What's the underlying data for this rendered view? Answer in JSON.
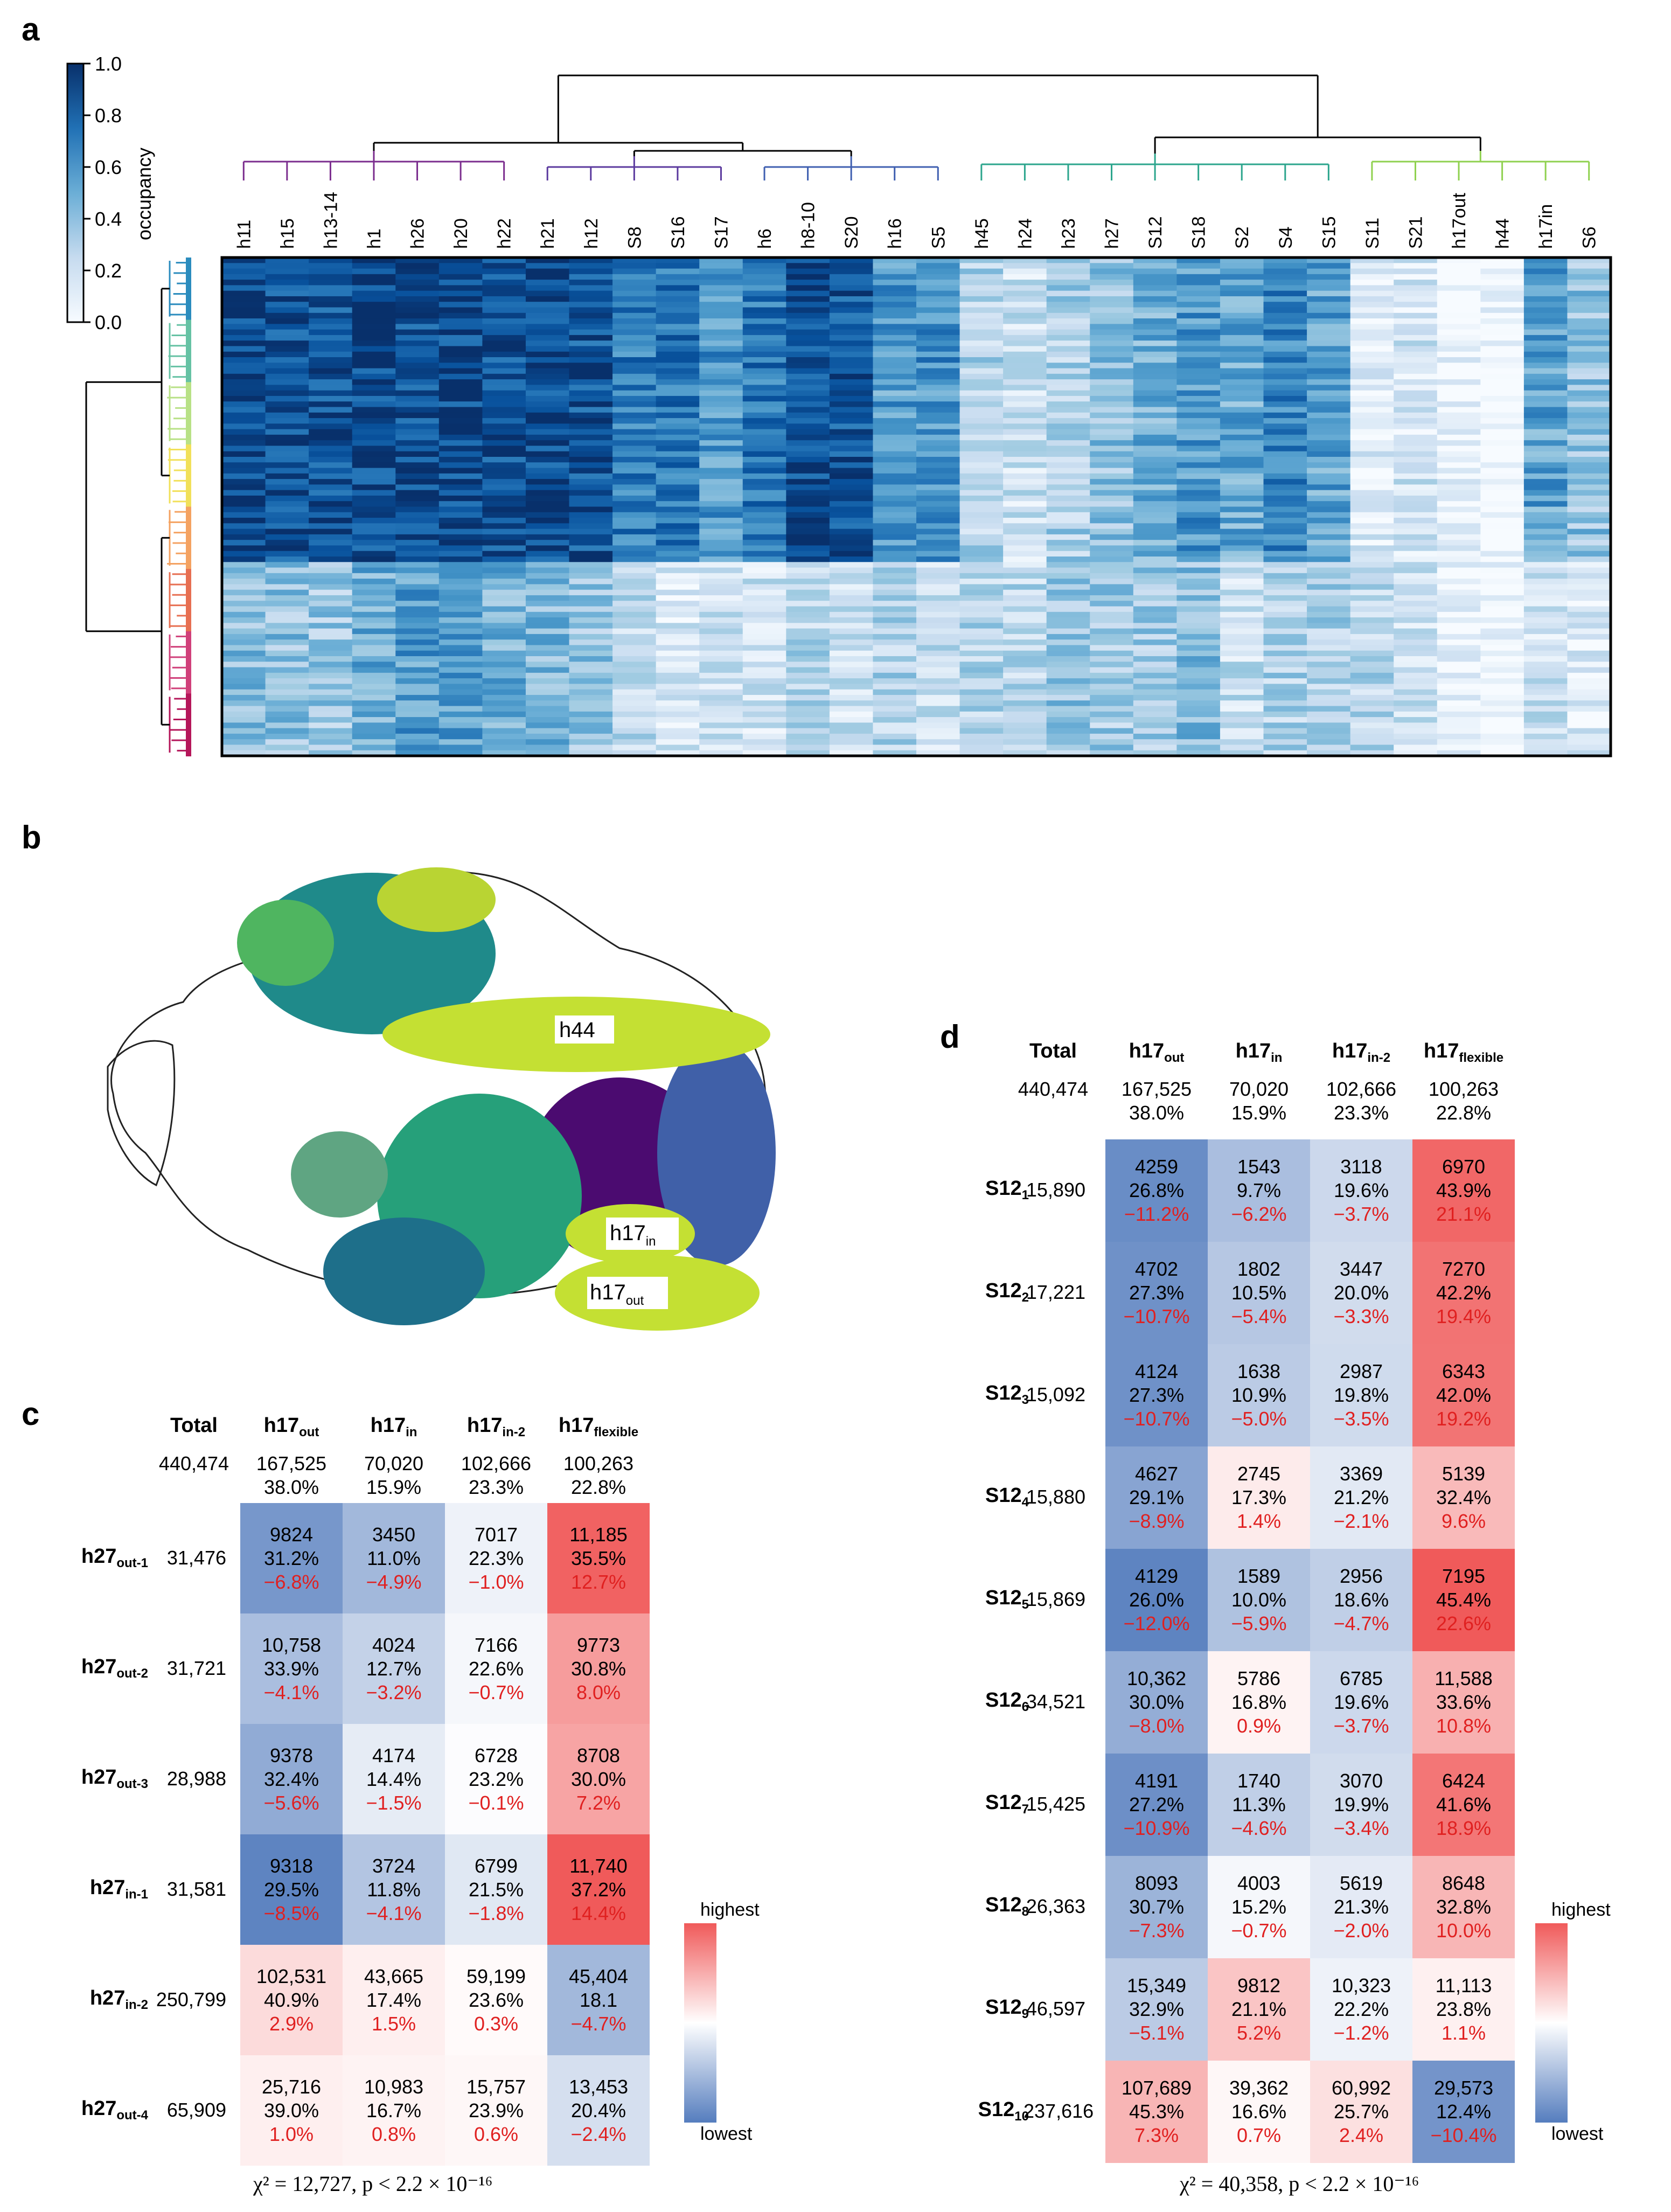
{
  "panels": {
    "a": "a",
    "b": "b",
    "c": "c",
    "d": "d"
  },
  "panel_a": {
    "colorbar": {
      "label": "occupancy",
      "ticks": [
        "1.0",
        "0.8",
        "0.6",
        "0.4",
        "0.2",
        "0.0"
      ],
      "cmap": [
        "#f7fbff",
        "#deebf7",
        "#c6dbef",
        "#9ecae1",
        "#6baed6",
        "#4292c6",
        "#2171b5",
        "#08519c",
        "#08306b"
      ]
    },
    "columns": [
      "h11",
      "h15",
      "h13-14",
      "h1",
      "h26",
      "h20",
      "h22",
      "h21",
      "h12",
      "S8",
      "S16",
      "S17",
      "h6",
      "h8-10",
      "S20",
      "h16",
      "S5",
      "h45",
      "h24",
      "h23",
      "h27",
      "S12",
      "S18",
      "S2",
      "S4",
      "S15",
      "S11",
      "S21",
      "h17out",
      "h44",
      "h17in",
      "S6"
    ],
    "column_cluster_colors": [
      "#7b2d8e",
      "#7b2d8e",
      "#7b2d8e",
      "#7b2d8e",
      "#7b2d8e",
      "#7b2d8e",
      "#7b2d8e",
      "#5b3a9e",
      "#5b3a9e",
      "#5b3a9e",
      "#5b3a9e",
      "#5b3a9e",
      "#3f5fb0",
      "#3f5fb0",
      "#3f5fb0",
      "#2e86a6",
      "#2e86a6",
      "#2ca58d",
      "#2ca58d",
      "#2ca58d",
      "#2fb67c",
      "#2fb67c",
      "#2fb67c",
      "#2fb67c",
      "#2fb67c",
      "#2fb67c",
      "#8fd14f",
      "#8fd14f",
      "#b5d93a",
      "#b5d93a",
      "#b5d93a",
      "#b5d93a"
    ],
    "column_mean_top": [
      0.92,
      0.88,
      0.86,
      0.9,
      0.88,
      0.9,
      0.88,
      0.9,
      0.86,
      0.7,
      0.74,
      0.6,
      0.72,
      0.9,
      0.86,
      0.58,
      0.62,
      0.3,
      0.2,
      0.32,
      0.4,
      0.5,
      0.6,
      0.52,
      0.66,
      0.55,
      0.12,
      0.18,
      0.05,
      0.02,
      0.55,
      0.4
    ],
    "column_mean_bottom": [
      0.42,
      0.4,
      0.36,
      0.5,
      0.58,
      0.55,
      0.48,
      0.45,
      0.4,
      0.25,
      0.15,
      0.18,
      0.2,
      0.28,
      0.2,
      0.3,
      0.22,
      0.28,
      0.26,
      0.38,
      0.34,
      0.36,
      0.42,
      0.22,
      0.3,
      0.3,
      0.28,
      0.22,
      0.04,
      0.02,
      0.2,
      0.12
    ],
    "row_cluster_colors": [
      "#2b8cbe",
      "#66c2a4",
      "#b8e186",
      "#f1e05a",
      "#f4a261",
      "#e76f51",
      "#d0407a",
      "#b5165a"
    ]
  },
  "panel_b": {
    "labels": {
      "h44": "h44",
      "h17in_main": "h17",
      "h17in_sub": "in",
      "h17out_main": "h17",
      "h17out_sub": "out"
    }
  },
  "legend": {
    "highest": "highest",
    "lowest": "lowest"
  },
  "panel_c": {
    "columns": [
      {
        "main": "Total",
        "sub": ""
      },
      {
        "main": "h17",
        "sub": "out"
      },
      {
        "main": "h17",
        "sub": "in"
      },
      {
        "main": "h17",
        "sub": "in-2"
      },
      {
        "main": "h17",
        "sub": "flexible"
      }
    ],
    "totals": {
      "total": "440,474",
      "cols": [
        {
          "count": "167,525",
          "pct": "38.0%"
        },
        {
          "count": "70,020",
          "pct": "15.9%"
        },
        {
          "count": "102,666",
          "pct": "23.3%"
        },
        {
          "count": "100,263",
          "pct": "22.8%"
        }
      ]
    },
    "rows": [
      {
        "main": "h27",
        "sub": "out-1",
        "total": "31,476",
        "cells": [
          {
            "n": "9824",
            "p": "31.2%",
            "d": "−6.8%",
            "v": -0.8
          },
          {
            "n": "3450",
            "p": "11.0%",
            "d": "−4.9%",
            "v": -0.55
          },
          {
            "n": "7017",
            "p": "22.3%",
            "d": "−1.0%",
            "v": -0.1
          },
          {
            "n": "11,185",
            "p": "35.5%",
            "d": "12.7%",
            "v": 0.95
          }
        ]
      },
      {
        "main": "h27",
        "sub": "out-2",
        "total": "31,721",
        "cells": [
          {
            "n": "10,758",
            "p": "33.9%",
            "d": "−4.1%",
            "v": -0.5
          },
          {
            "n": "4024",
            "p": "12.7%",
            "d": "−3.2%",
            "v": -0.35
          },
          {
            "n": "7166",
            "p": "22.6%",
            "d": "−0.7%",
            "v": -0.06
          },
          {
            "n": "9773",
            "p": "30.8%",
            "d": "8.0%",
            "v": 0.6
          }
        ]
      },
      {
        "main": "h27",
        "sub": "out-3",
        "total": "28,988",
        "cells": [
          {
            "n": "9378",
            "p": "32.4%",
            "d": "−5.6%",
            "v": -0.65
          },
          {
            "n": "4174",
            "p": "14.4%",
            "d": "−1.5%",
            "v": -0.15
          },
          {
            "n": "6728",
            "p": "23.2%",
            "d": "−0.1%",
            "v": -0.02
          },
          {
            "n": "8708",
            "p": "30.0%",
            "d": "7.2%",
            "v": 0.55
          }
        ]
      },
      {
        "main": "h27",
        "sub": "in-1",
        "total": "31,581",
        "cells": [
          {
            "n": "9318",
            "p": "29.5%",
            "d": "−8.5%",
            "v": -0.95
          },
          {
            "n": "3724",
            "p": "11.8%",
            "d": "−4.1%",
            "v": -0.45
          },
          {
            "n": "6799",
            "p": "21.5%",
            "d": "−1.8%",
            "v": -0.18
          },
          {
            "n": "11,740",
            "p": "37.2%",
            "d": "14.4%",
            "v": 1.0
          }
        ]
      },
      {
        "main": "h27",
        "sub": "in-2",
        "total": "250,799",
        "cells": [
          {
            "n": "102,531",
            "p": "40.9%",
            "d": "2.9%",
            "v": 0.22
          },
          {
            "n": "43,665",
            "p": "17.4%",
            "d": "1.5%",
            "v": 0.1
          },
          {
            "n": "59,199",
            "p": "23.6%",
            "d": "0.3%",
            "v": 0.03
          },
          {
            "n": "45,404",
            "p": "18.1",
            "d": "−4.7%",
            "v": -0.55
          }
        ]
      },
      {
        "main": "h27",
        "sub": "out-4",
        "total": "65,909",
        "cells": [
          {
            "n": "25,716",
            "p": "39.0%",
            "d": "1.0%",
            "v": 0.1
          },
          {
            "n": "10,983",
            "p": "16.7%",
            "d": "0.8%",
            "v": 0.07
          },
          {
            "n": "15,757",
            "p": "23.9%",
            "d": "0.6%",
            "v": 0.05
          },
          {
            "n": "13,453",
            "p": "20.4%",
            "d": "−2.4%",
            "v": -0.25
          }
        ]
      }
    ],
    "footnote": "χ² = 12,727, p < 2.2 × 10⁻¹⁶"
  },
  "panel_d": {
    "columns": [
      {
        "main": "Total",
        "sub": ""
      },
      {
        "main": "h17",
        "sub": "out"
      },
      {
        "main": "h17",
        "sub": "in"
      },
      {
        "main": "h17",
        "sub": "in-2"
      },
      {
        "main": "h17",
        "sub": "flexible"
      }
    ],
    "totals": {
      "total": "440,474",
      "cols": [
        {
          "count": "167,525",
          "pct": "38.0%"
        },
        {
          "count": "70,020",
          "pct": "15.9%"
        },
        {
          "count": "102,666",
          "pct": "23.3%"
        },
        {
          "count": "100,263",
          "pct": "22.8%"
        }
      ]
    },
    "rows": [
      {
        "main": "S12",
        "sub": "1",
        "total": "15,890",
        "cells": [
          {
            "n": "4259",
            "p": "26.8%",
            "d": "−11.2%",
            "v": -0.88
          },
          {
            "n": "1543",
            "p": "9.7%",
            "d": "−6.2%",
            "v": -0.5
          },
          {
            "n": "3118",
            "p": "19.6%",
            "d": "−3.7%",
            "v": -0.3
          },
          {
            "n": "6970",
            "p": "43.9%",
            "d": "21.1%",
            "v": 0.92
          }
        ]
      },
      {
        "main": "S12",
        "sub": "2",
        "total": "17,221",
        "cells": [
          {
            "n": "4702",
            "p": "27.3%",
            "d": "−10.7%",
            "v": -0.85
          },
          {
            "n": "1802",
            "p": "10.5%",
            "d": "−5.4%",
            "v": -0.43
          },
          {
            "n": "3447",
            "p": "20.0%",
            "d": "−3.3%",
            "v": -0.27
          },
          {
            "n": "7270",
            "p": "42.2%",
            "d": "19.4%",
            "v": 0.85
          }
        ]
      },
      {
        "main": "S12",
        "sub": "3",
        "total": "15,092",
        "cells": [
          {
            "n": "4124",
            "p": "27.3%",
            "d": "−10.7%",
            "v": -0.85
          },
          {
            "n": "1638",
            "p": "10.9%",
            "d": "−5.0%",
            "v": -0.4
          },
          {
            "n": "2987",
            "p": "19.8%",
            "d": "−3.5%",
            "v": -0.28
          },
          {
            "n": "6343",
            "p": "42.0%",
            "d": "19.2%",
            "v": 0.84
          }
        ]
      },
      {
        "main": "S12",
        "sub": "4",
        "total": "15,880",
        "cells": [
          {
            "n": "4627",
            "p": "29.1%",
            "d": "−8.9%",
            "v": -0.7
          },
          {
            "n": "2745",
            "p": "17.3%",
            "d": "1.4%",
            "v": 0.12
          },
          {
            "n": "3369",
            "p": "21.2%",
            "d": "−2.1%",
            "v": -0.17
          },
          {
            "n": "5139",
            "p": "32.4%",
            "d": "9.6%",
            "v": 0.42
          }
        ]
      },
      {
        "main": "S12",
        "sub": "5",
        "total": "15,869",
        "cells": [
          {
            "n": "4129",
            "p": "26.0%",
            "d": "−12.0%",
            "v": -0.95
          },
          {
            "n": "1589",
            "p": "10.0%",
            "d": "−5.9%",
            "v": -0.47
          },
          {
            "n": "2956",
            "p": "18.6%",
            "d": "−4.7%",
            "v": -0.37
          },
          {
            "n": "7195",
            "p": "45.4%",
            "d": "22.6%",
            "v": 1.0
          }
        ]
      },
      {
        "main": "S12",
        "sub": "6",
        "total": "34,521",
        "cells": [
          {
            "n": "10,362",
            "p": "30.0%",
            "d": "−8.0%",
            "v": -0.63
          },
          {
            "n": "5786",
            "p": "16.8%",
            "d": "0.9%",
            "v": 0.07
          },
          {
            "n": "6785",
            "p": "19.6%",
            "d": "−3.7%",
            "v": -0.3
          },
          {
            "n": "11,588",
            "p": "33.6%",
            "d": "10.8%",
            "v": 0.48
          }
        ]
      },
      {
        "main": "S12",
        "sub": "7",
        "total": "15,425",
        "cells": [
          {
            "n": "4191",
            "p": "27.2%",
            "d": "−10.9%",
            "v": -0.86
          },
          {
            "n": "1740",
            "p": "11.3%",
            "d": "−4.6%",
            "v": -0.37
          },
          {
            "n": "3070",
            "p": "19.9%",
            "d": "−3.4%",
            "v": -0.27
          },
          {
            "n": "6424",
            "p": "41.6%",
            "d": "18.9%",
            "v": 0.83
          }
        ]
      },
      {
        "main": "S12",
        "sub": "8",
        "total": "26,363",
        "cells": [
          {
            "n": "8093",
            "p": "30.7%",
            "d": "−7.3%",
            "v": -0.58
          },
          {
            "n": "4003",
            "p": "15.2%",
            "d": "−0.7%",
            "v": -0.06
          },
          {
            "n": "5619",
            "p": "21.3%",
            "d": "−2.0%",
            "v": -0.16
          },
          {
            "n": "8648",
            "p": "32.8%",
            "d": "10.0%",
            "v": 0.44
          }
        ]
      },
      {
        "main": "S12",
        "sub": "9",
        "total": "46,597",
        "cells": [
          {
            "n": "15,349",
            "p": "32.9%",
            "d": "−5.1%",
            "v": -0.4
          },
          {
            "n": "9812",
            "p": "21.1%",
            "d": "5.2%",
            "v": 0.35
          },
          {
            "n": "10,323",
            "p": "22.2%",
            "d": "−1.2%",
            "v": -0.1
          },
          {
            "n": "11,113",
            "p": "23.8%",
            "d": "1.1%",
            "v": 0.09
          }
        ]
      },
      {
        "main": "S12",
        "sub": "10",
        "total": "237,616",
        "cells": [
          {
            "n": "107,689",
            "p": "45.3%",
            "d": "7.3%",
            "v": 0.45
          },
          {
            "n": "39,362",
            "p": "16.6%",
            "d": "0.7%",
            "v": 0.05
          },
          {
            "n": "60,992",
            "p": "25.7%",
            "d": "2.4%",
            "v": 0.19
          },
          {
            "n": "29,573",
            "p": "12.4%",
            "d": "−10.4%",
            "v": -0.82
          }
        ]
      }
    ],
    "footnote": "χ² = 40,358, p < 2.2 × 10⁻¹⁶"
  }
}
